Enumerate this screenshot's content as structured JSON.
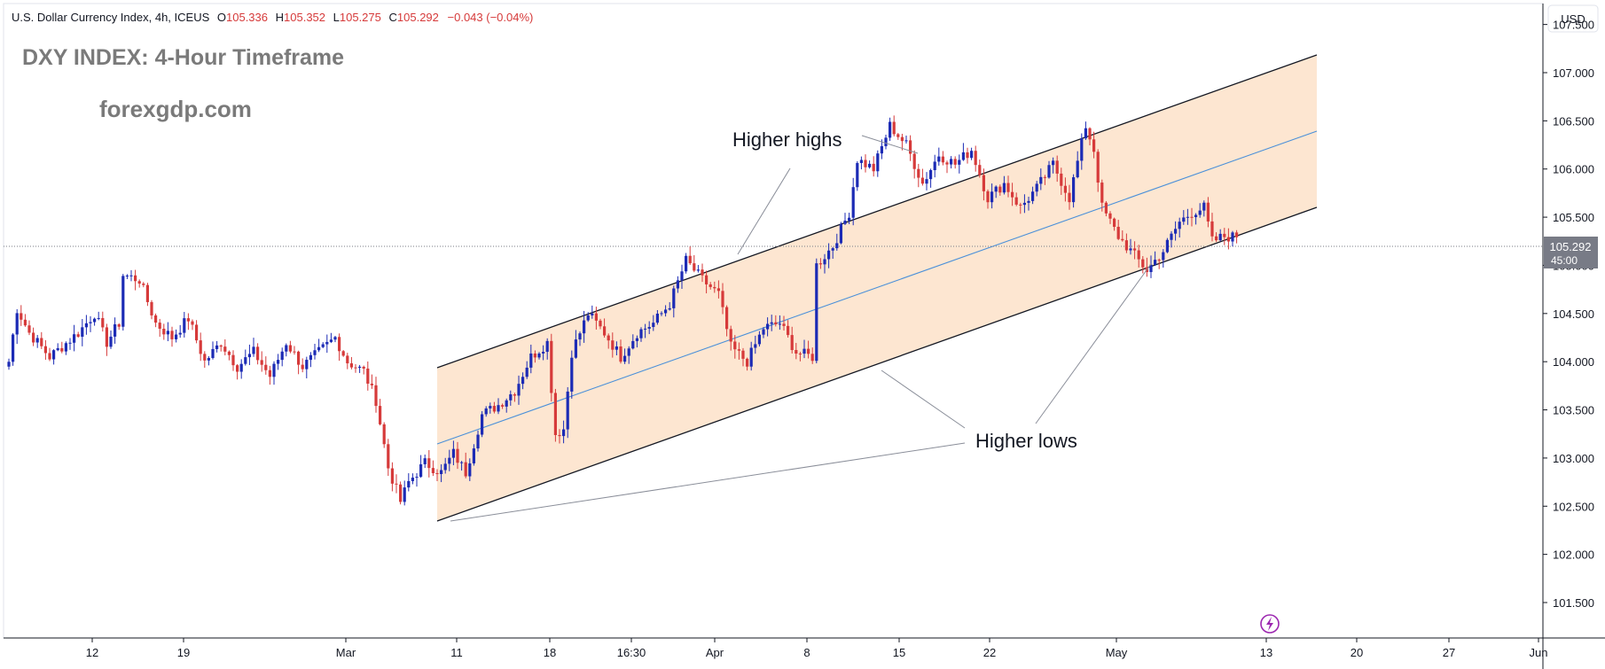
{
  "header": {
    "symbol": "U.S. Dollar Currency Index, 4h, ICEUS",
    "o_label": "O",
    "o_value": "105.336",
    "h_label": "H",
    "h_value": "105.352",
    "l_label": "L",
    "l_value": "105.275",
    "c_label": "C",
    "c_value": "105.292",
    "change": "−0.043 (−0.04%)"
  },
  "watermark": {
    "title": "DXY INDEX: 4-Hour Timeframe",
    "site": "forexgdp.com"
  },
  "currency_button": "USD",
  "price_badge": {
    "price": "105.292",
    "countdown": "45:00"
  },
  "annotations": {
    "higher_highs": "Higher highs",
    "higher_lows": "Higher lows"
  },
  "colors": {
    "up": "#1c2bb5",
    "down": "#d63a3a",
    "channel_fill": "#fde3cc",
    "mid_line": "#4a90d9",
    "badge": "#787b86",
    "text": "#131722",
    "watermark": "#7a7a7a",
    "accent": "#9c27b0"
  },
  "icons": {
    "alert": "lightning-icon"
  },
  "chart_data": {
    "type": "candlestick",
    "title": "DXY INDEX: 4-Hour Timeframe",
    "y_ticks": [
      "101.500",
      "102.000",
      "102.500",
      "103.000",
      "103.500",
      "104.000",
      "104.500",
      "105.000",
      "105.500",
      "106.000",
      "106.500",
      "107.000",
      "107.500"
    ],
    "x_ticks": [
      "12",
      "19",
      "Mar",
      "11",
      "18",
      "16:30",
      "Apr",
      "8",
      "15",
      "22",
      "May",
      "13",
      "20",
      "27",
      "Jun"
    ],
    "ylim": [
      101.2,
      107.6
    ],
    "grid": false,
    "current_price": 105.292,
    "anchors": [
      {
        "t": 0,
        "p": 104.0
      },
      {
        "t": 2,
        "p": 104.55
      },
      {
        "t": 5,
        "p": 104.3
      },
      {
        "t": 10,
        "p": 104.05
      },
      {
        "t": 17,
        "p": 104.3
      },
      {
        "t": 21,
        "p": 104.5
      },
      {
        "t": 24,
        "p": 104.2
      },
      {
        "t": 27,
        "p": 104.4
      },
      {
        "t": 28,
        "p": 104.9
      },
      {
        "t": 32,
        "p": 104.85
      },
      {
        "t": 36,
        "p": 104.4
      },
      {
        "t": 40,
        "p": 104.25
      },
      {
        "t": 44,
        "p": 104.45
      },
      {
        "t": 48,
        "p": 104.0
      },
      {
        "t": 52,
        "p": 104.2
      },
      {
        "t": 56,
        "p": 103.95
      },
      {
        "t": 60,
        "p": 104.1
      },
      {
        "t": 64,
        "p": 103.85
      },
      {
        "t": 68,
        "p": 104.2
      },
      {
        "t": 72,
        "p": 103.95
      },
      {
        "t": 76,
        "p": 104.1
      },
      {
        "t": 80,
        "p": 104.25
      },
      {
        "t": 83,
        "p": 104.0
      },
      {
        "t": 87,
        "p": 103.9
      },
      {
        "t": 90,
        "p": 103.6
      },
      {
        "t": 93,
        "p": 102.9
      },
      {
        "t": 96,
        "p": 102.55
      },
      {
        "t": 98,
        "p": 102.75
      },
      {
        "t": 102,
        "p": 102.95
      },
      {
        "t": 106,
        "p": 102.85
      },
      {
        "t": 109,
        "p": 103.05
      },
      {
        "t": 112,
        "p": 102.85
      },
      {
        "t": 116,
        "p": 103.45
      },
      {
        "t": 120,
        "p": 103.55
      },
      {
        "t": 124,
        "p": 103.7
      },
      {
        "t": 128,
        "p": 104.05
      },
      {
        "t": 132,
        "p": 104.2
      },
      {
        "t": 134,
        "p": 103.25
      },
      {
        "t": 136,
        "p": 103.3
      },
      {
        "t": 138,
        "p": 104.1
      },
      {
        "t": 142,
        "p": 104.5
      },
      {
        "t": 146,
        "p": 104.3
      },
      {
        "t": 150,
        "p": 104.05
      },
      {
        "t": 154,
        "p": 104.3
      },
      {
        "t": 158,
        "p": 104.4
      },
      {
        "t": 162,
        "p": 104.6
      },
      {
        "t": 166,
        "p": 105.05
      },
      {
        "t": 170,
        "p": 104.85
      },
      {
        "t": 174,
        "p": 104.7
      },
      {
        "t": 177,
        "p": 104.15
      },
      {
        "t": 181,
        "p": 104.0
      },
      {
        "t": 185,
        "p": 104.35
      },
      {
        "t": 189,
        "p": 104.4
      },
      {
        "t": 193,
        "p": 104.1
      },
      {
        "t": 197,
        "p": 104.05
      },
      {
        "t": 198,
        "p": 105.0
      },
      {
        "t": 202,
        "p": 105.2
      },
      {
        "t": 206,
        "p": 105.55
      },
      {
        "t": 208,
        "p": 106.1
      },
      {
        "t": 212,
        "p": 106.0
      },
      {
        "t": 216,
        "p": 106.45
      },
      {
        "t": 220,
        "p": 106.25
      },
      {
        "t": 224,
        "p": 105.85
      },
      {
        "t": 228,
        "p": 106.15
      },
      {
        "t": 232,
        "p": 106.05
      },
      {
        "t": 236,
        "p": 106.2
      },
      {
        "t": 240,
        "p": 105.7
      },
      {
        "t": 244,
        "p": 105.85
      },
      {
        "t": 248,
        "p": 105.6
      },
      {
        "t": 252,
        "p": 105.8
      },
      {
        "t": 256,
        "p": 106.05
      },
      {
        "t": 260,
        "p": 105.7
      },
      {
        "t": 264,
        "p": 106.45
      },
      {
        "t": 266,
        "p": 106.2
      },
      {
        "t": 268,
        "p": 105.6
      },
      {
        "t": 272,
        "p": 105.3
      },
      {
        "t": 275,
        "p": 105.15
      },
      {
        "t": 279,
        "p": 104.95
      },
      {
        "t": 283,
        "p": 105.15
      },
      {
        "t": 287,
        "p": 105.45
      },
      {
        "t": 290,
        "p": 105.55
      },
      {
        "t": 293,
        "p": 105.6
      },
      {
        "t": 295,
        "p": 105.25
      },
      {
        "t": 298,
        "p": 105.3
      },
      {
        "t": 301,
        "p": 105.292
      }
    ]
  }
}
